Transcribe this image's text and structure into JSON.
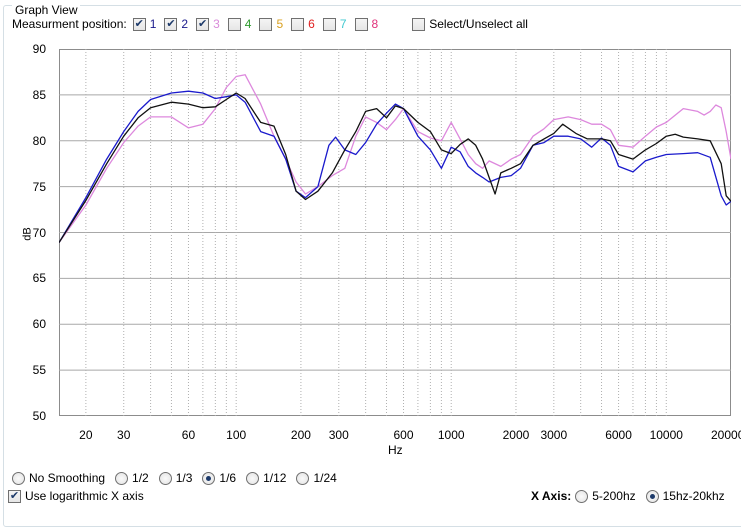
{
  "group_title": "Graph View",
  "measurement": {
    "label": "Measurment position:",
    "items": [
      {
        "num": "1",
        "checked": true,
        "color": "#1a1a8c"
      },
      {
        "num": "2",
        "checked": true,
        "color": "#1a1a8c"
      },
      {
        "num": "3",
        "checked": true,
        "color": "#d98bd9"
      },
      {
        "num": "4",
        "checked": false,
        "color": "#2e9a2e"
      },
      {
        "num": "5",
        "checked": false,
        "color": "#d9a020"
      },
      {
        "num": "6",
        "checked": false,
        "color": "#e02020"
      },
      {
        "num": "7",
        "checked": false,
        "color": "#40c8d0"
      },
      {
        "num": "8",
        "checked": false,
        "color": "#e0307a"
      }
    ],
    "select_all_label": "Select/Unselect all"
  },
  "smoothing": {
    "options": [
      {
        "label": "No Smoothing",
        "selected": false
      },
      {
        "label": "1/2",
        "selected": false
      },
      {
        "label": "1/3",
        "selected": false
      },
      {
        "label": "1/6",
        "selected": true
      },
      {
        "label": "1/12",
        "selected": false
      },
      {
        "label": "1/24",
        "selected": false
      }
    ]
  },
  "log_axis_label": "Use logarithmic X axis",
  "x_axis_range": {
    "title": "X Axis:",
    "options": [
      {
        "label": "5-200hz",
        "selected": false
      },
      {
        "label": "15hz-20khz",
        "selected": true
      }
    ]
  },
  "chart_data": {
    "type": "line",
    "xlabel": "Hz",
    "ylabel": "dB",
    "ylim": [
      50,
      90
    ],
    "xlim": [
      15,
      20000
    ],
    "x_scale": "log",
    "x_ticks": [
      "20",
      "30",
      "60",
      "100",
      "200",
      "300",
      "600",
      "1000",
      "2000",
      "3000",
      "6000",
      "10000",
      "20000"
    ],
    "y_ticks": [
      "50",
      "55",
      "60",
      "65",
      "70",
      "75",
      "80",
      "85",
      "90"
    ],
    "grid": true,
    "series": [
      {
        "name": "1",
        "color": "#111111",
        "points": [
          [
            15,
            68.9
          ],
          [
            20,
            73.5
          ],
          [
            25,
            77.5
          ],
          [
            30,
            80.5
          ],
          [
            35,
            82.5
          ],
          [
            40,
            83.6
          ],
          [
            50,
            84.2
          ],
          [
            60,
            84
          ],
          [
            70,
            83.6
          ],
          [
            80,
            83.7
          ],
          [
            90,
            84.5
          ],
          [
            100,
            85.2
          ],
          [
            110,
            84.6
          ],
          [
            130,
            82.0
          ],
          [
            150,
            81.6
          ],
          [
            170,
            78.5
          ],
          [
            190,
            74.5
          ],
          [
            210,
            73.6
          ],
          [
            240,
            74.5
          ],
          [
            280,
            76.5
          ],
          [
            320,
            79.0
          ],
          [
            360,
            81.0
          ],
          [
            400,
            83.2
          ],
          [
            450,
            83.5
          ],
          [
            500,
            82.5
          ],
          [
            550,
            83.8
          ],
          [
            600,
            83.5
          ],
          [
            700,
            82.0
          ],
          [
            800,
            81.0
          ],
          [
            900,
            79.0
          ],
          [
            1000,
            78.6
          ],
          [
            1100,
            79.6
          ],
          [
            1200,
            80.2
          ],
          [
            1300,
            79.5
          ],
          [
            1400,
            78.0
          ],
          [
            1500,
            76.0
          ],
          [
            1600,
            74.2
          ],
          [
            1700,
            76.5
          ],
          [
            1900,
            77.0
          ],
          [
            2100,
            77.5
          ],
          [
            2400,
            79.5
          ],
          [
            2700,
            80.2
          ],
          [
            3000,
            80.8
          ],
          [
            3300,
            81.8
          ],
          [
            3800,
            80.8
          ],
          [
            4300,
            80.2
          ],
          [
            5000,
            80.2
          ],
          [
            5500,
            80.0
          ],
          [
            6000,
            78.5
          ],
          [
            7000,
            78.0
          ],
          [
            8000,
            79.0
          ],
          [
            9000,
            79.7
          ],
          [
            10000,
            80.5
          ],
          [
            11000,
            80.7
          ],
          [
            12000,
            80.4
          ],
          [
            14000,
            80.2
          ],
          [
            16000,
            80.0
          ],
          [
            18000,
            77.5
          ],
          [
            19000,
            74.0
          ],
          [
            20000,
            73.4
          ]
        ]
      },
      {
        "name": "2",
        "color": "#1a1acc",
        "points": [
          [
            15,
            68.9
          ],
          [
            20,
            73.8
          ],
          [
            25,
            78.0
          ],
          [
            30,
            81.0
          ],
          [
            35,
            83.2
          ],
          [
            40,
            84.5
          ],
          [
            50,
            85.2
          ],
          [
            60,
            85.4
          ],
          [
            70,
            85.2
          ],
          [
            80,
            84.6
          ],
          [
            90,
            84.8
          ],
          [
            100,
            85.0
          ],
          [
            110,
            84.2
          ],
          [
            130,
            81.0
          ],
          [
            150,
            80.5
          ],
          [
            170,
            78.0
          ],
          [
            190,
            74.5
          ],
          [
            210,
            73.8
          ],
          [
            240,
            75.0
          ],
          [
            270,
            79.5
          ],
          [
            290,
            80.4
          ],
          [
            320,
            79.0
          ],
          [
            360,
            78.5
          ],
          [
            400,
            79.8
          ],
          [
            450,
            81.8
          ],
          [
            500,
            83.0
          ],
          [
            550,
            84.0
          ],
          [
            600,
            83.5
          ],
          [
            700,
            80.5
          ],
          [
            800,
            79.0
          ],
          [
            900,
            77.0
          ],
          [
            1000,
            79.3
          ],
          [
            1100,
            78.8
          ],
          [
            1200,
            77.2
          ],
          [
            1300,
            76.5
          ],
          [
            1400,
            76.0
          ],
          [
            1500,
            75.5
          ],
          [
            1700,
            76.0
          ],
          [
            1900,
            76.2
          ],
          [
            2100,
            77.0
          ],
          [
            2400,
            79.5
          ],
          [
            2700,
            79.8
          ],
          [
            3000,
            80.5
          ],
          [
            3500,
            80.5
          ],
          [
            4000,
            80.2
          ],
          [
            4500,
            79.3
          ],
          [
            5000,
            80.3
          ],
          [
            5500,
            79.5
          ],
          [
            6000,
            77.2
          ],
          [
            7000,
            76.6
          ],
          [
            8000,
            77.8
          ],
          [
            9000,
            78.2
          ],
          [
            10000,
            78.5
          ],
          [
            12000,
            78.6
          ],
          [
            14000,
            78.7
          ],
          [
            16000,
            78.2
          ],
          [
            18000,
            74.0
          ],
          [
            19000,
            73.0
          ],
          [
            20000,
            73.4
          ]
        ]
      },
      {
        "name": "3",
        "color": "#dd88dd",
        "points": [
          [
            15,
            68.9
          ],
          [
            20,
            73.0
          ],
          [
            25,
            77.0
          ],
          [
            30,
            79.8
          ],
          [
            35,
            81.6
          ],
          [
            40,
            82.6
          ],
          [
            50,
            82.6
          ],
          [
            60,
            81.4
          ],
          [
            70,
            81.8
          ],
          [
            80,
            83.5
          ],
          [
            90,
            85.8
          ],
          [
            100,
            87.0
          ],
          [
            110,
            87.2
          ],
          [
            130,
            84.0
          ],
          [
            150,
            80.5
          ],
          [
            170,
            78.0
          ],
          [
            190,
            75.5
          ],
          [
            210,
            74.2
          ],
          [
            240,
            75.0
          ],
          [
            280,
            76.2
          ],
          [
            320,
            77.0
          ],
          [
            360,
            80.5
          ],
          [
            400,
            82.6
          ],
          [
            450,
            82.0
          ],
          [
            500,
            81.2
          ],
          [
            550,
            82.3
          ],
          [
            600,
            83.5
          ],
          [
            700,
            81.0
          ],
          [
            800,
            80.3
          ],
          [
            900,
            80.0
          ],
          [
            1000,
            82.0
          ],
          [
            1100,
            80.2
          ],
          [
            1200,
            78.5
          ],
          [
            1300,
            77.5
          ],
          [
            1400,
            77.0
          ],
          [
            1500,
            77.8
          ],
          [
            1700,
            77.2
          ],
          [
            1900,
            78.0
          ],
          [
            2100,
            78.5
          ],
          [
            2400,
            80.5
          ],
          [
            2700,
            81.3
          ],
          [
            3000,
            82.3
          ],
          [
            3500,
            82.6
          ],
          [
            4000,
            82.3
          ],
          [
            4500,
            81.8
          ],
          [
            5000,
            81.8
          ],
          [
            5500,
            81.2
          ],
          [
            6000,
            79.5
          ],
          [
            7000,
            79.3
          ],
          [
            8000,
            80.5
          ],
          [
            9000,
            81.5
          ],
          [
            10000,
            82.0
          ],
          [
            12000,
            83.5
          ],
          [
            14000,
            83.2
          ],
          [
            15000,
            82.8
          ],
          [
            16000,
            83.2
          ],
          [
            17000,
            83.9
          ],
          [
            18000,
            83.6
          ],
          [
            19000,
            81.0
          ],
          [
            20000,
            78.0
          ]
        ]
      }
    ]
  }
}
